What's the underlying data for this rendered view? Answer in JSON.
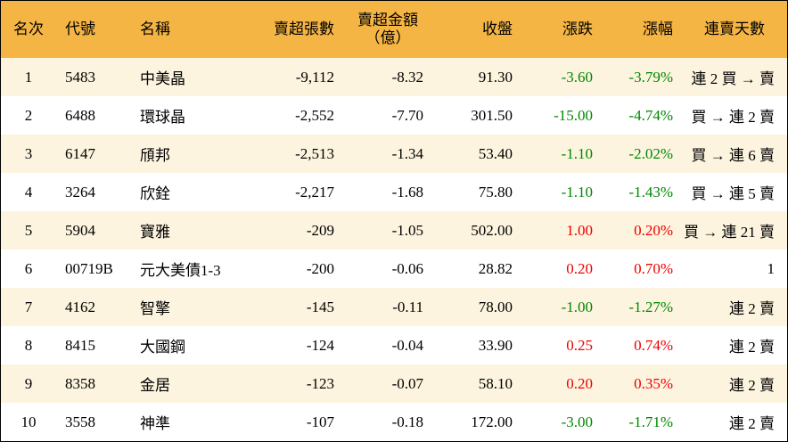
{
  "headers": {
    "rank": "名次",
    "code": "代號",
    "name": "名稱",
    "net_sell_volume": "賣超張數",
    "net_sell_amount_line1": "賣超金額",
    "net_sell_amount_line2": "（億）",
    "close": "收盤",
    "change": "漲跌",
    "change_pct": "漲幅",
    "streak": "連賣天數"
  },
  "colors": {
    "header_bg": "#f5b544",
    "row_odd_bg": "#fdf4df",
    "row_even_bg": "#ffffff",
    "up": "#ee0000",
    "down": "#008800"
  },
  "rows": [
    {
      "rank": "1",
      "code": "5483",
      "name": "中美晶",
      "vol": "-9,112",
      "amt": "-8.32",
      "close": "91.30",
      "chg": "-3.60",
      "pct": "-3.79%",
      "dir": "neg",
      "streak": "連 2 買 → 賣"
    },
    {
      "rank": "2",
      "code": "6488",
      "name": "環球晶",
      "vol": "-2,552",
      "amt": "-7.70",
      "close": "301.50",
      "chg": "-15.00",
      "pct": "-4.74%",
      "dir": "neg",
      "streak": "買 → 連 2 賣"
    },
    {
      "rank": "3",
      "code": "6147",
      "name": "頎邦",
      "vol": "-2,513",
      "amt": "-1.34",
      "close": "53.40",
      "chg": "-1.10",
      "pct": "-2.02%",
      "dir": "neg",
      "streak": "買 → 連 6 賣"
    },
    {
      "rank": "4",
      "code": "3264",
      "name": "欣銓",
      "vol": "-2,217",
      "amt": "-1.68",
      "close": "75.80",
      "chg": "-1.10",
      "pct": "-1.43%",
      "dir": "neg",
      "streak": "買 → 連 5 賣"
    },
    {
      "rank": "5",
      "code": "5904",
      "name": "寶雅",
      "vol": "-209",
      "amt": "-1.05",
      "close": "502.00",
      "chg": "1.00",
      "pct": "0.20%",
      "dir": "pos",
      "streak": "買 → 連 21 賣"
    },
    {
      "rank": "6",
      "code": "00719B",
      "name": "元大美債1-3",
      "vol": "-200",
      "amt": "-0.06",
      "close": "28.82",
      "chg": "0.20",
      "pct": "0.70%",
      "dir": "pos",
      "streak": "1"
    },
    {
      "rank": "7",
      "code": "4162",
      "name": "智擎",
      "vol": "-145",
      "amt": "-0.11",
      "close": "78.00",
      "chg": "-1.00",
      "pct": "-1.27%",
      "dir": "neg",
      "streak": "連 2 賣"
    },
    {
      "rank": "8",
      "code": "8415",
      "name": "大國鋼",
      "vol": "-124",
      "amt": "-0.04",
      "close": "33.90",
      "chg": "0.25",
      "pct": "0.74%",
      "dir": "pos",
      "streak": "連 2 賣"
    },
    {
      "rank": "9",
      "code": "8358",
      "name": "金居",
      "vol": "-123",
      "amt": "-0.07",
      "close": "58.10",
      "chg": "0.20",
      "pct": "0.35%",
      "dir": "pos",
      "streak": "連 2 賣"
    },
    {
      "rank": "10",
      "code": "3558",
      "name": "神準",
      "vol": "-107",
      "amt": "-0.18",
      "close": "172.00",
      "chg": "-3.00",
      "pct": "-1.71%",
      "dir": "neg",
      "streak": "連 2 賣"
    }
  ]
}
